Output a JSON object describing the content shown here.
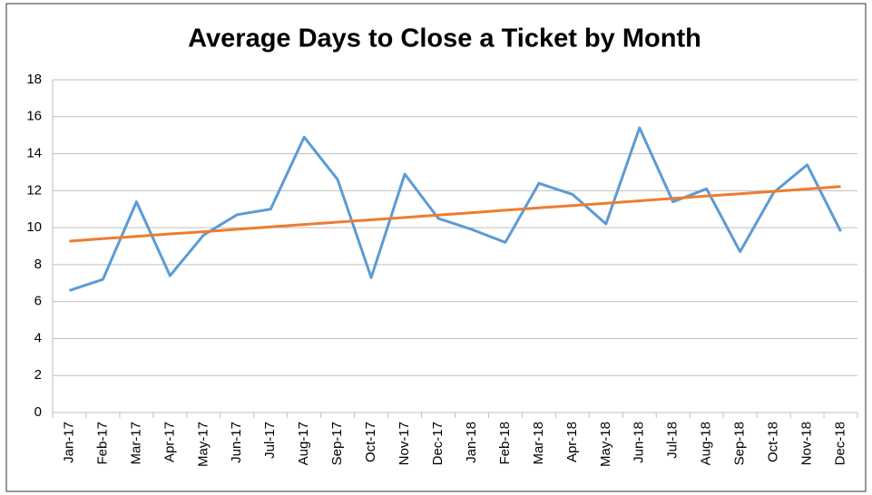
{
  "chart_data": {
    "type": "line",
    "title": "Average Days to Close a Ticket by Month",
    "categories": [
      "Jan-17",
      "Feb-17",
      "Mar-17",
      "Apr-17",
      "May-17",
      "Jun-17",
      "Jul-17",
      "Aug-17",
      "Sep-17",
      "Oct-17",
      "Nov-17",
      "Dec-17",
      "Jan-18",
      "Feb-18",
      "Mar-18",
      "Apr-18",
      "May-18",
      "Jun-18",
      "Jul-18",
      "Aug-18",
      "Sep-18",
      "Oct-18",
      "Nov-18",
      "Dec-18"
    ],
    "series": [
      {
        "color": "#5b9bd5",
        "values": [
          6.6,
          7.2,
          11.4,
          7.4,
          9.6,
          10.7,
          11.0,
          14.9,
          12.6,
          7.3,
          12.9,
          10.5,
          9.9,
          9.2,
          12.4,
          11.8,
          10.2,
          15.4,
          11.4,
          12.1,
          8.7,
          11.9,
          13.4,
          9.8
        ]
      },
      {
        "color": "#ed7d31",
        "values": [
          9.27,
          9.4,
          9.53,
          9.66,
          9.78,
          9.91,
          10.04,
          10.17,
          10.3,
          10.42,
          10.55,
          10.68,
          10.81,
          10.94,
          11.07,
          11.19,
          11.32,
          11.45,
          11.58,
          11.71,
          11.83,
          11.96,
          12.09,
          12.22
        ]
      }
    ],
    "ylim": [
      0,
      18
    ],
    "yticks": [
      0,
      2,
      4,
      6,
      8,
      10,
      12,
      14,
      16,
      18
    ],
    "grid": true
  }
}
